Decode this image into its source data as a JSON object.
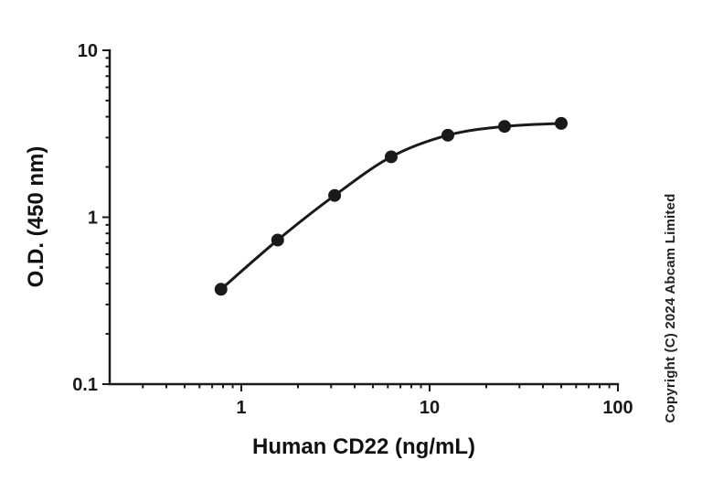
{
  "figure": {
    "copyright": "Copyright (C) 2024 Abcam Limited"
  },
  "chart_data": {
    "type": "line",
    "title": "",
    "xlabel": "Human CD22 (ng/mL)",
    "ylabel": "O.D. (450 nm)",
    "xscale": "log",
    "yscale": "log",
    "xlim": [
      0.2,
      100
    ],
    "ylim": [
      0.1,
      10
    ],
    "x_major_ticks": [
      1,
      10,
      100
    ],
    "x_major_tick_labels": [
      "1",
      "10",
      "100"
    ],
    "y_major_ticks": [
      0.1,
      1,
      10
    ],
    "y_major_tick_labels": [
      "0.1",
      "1",
      "10"
    ],
    "grid": false,
    "legend": null,
    "marker_color": "#1a1a1a",
    "series": [
      {
        "marker": "filled-circle",
        "color": "#1a1a1a",
        "x": [
          0.78,
          1.56,
          3.13,
          6.25,
          12.5,
          25,
          50
        ],
        "y": [
          0.37,
          0.73,
          1.35,
          2.3,
          3.1,
          3.5,
          3.65
        ]
      }
    ]
  }
}
